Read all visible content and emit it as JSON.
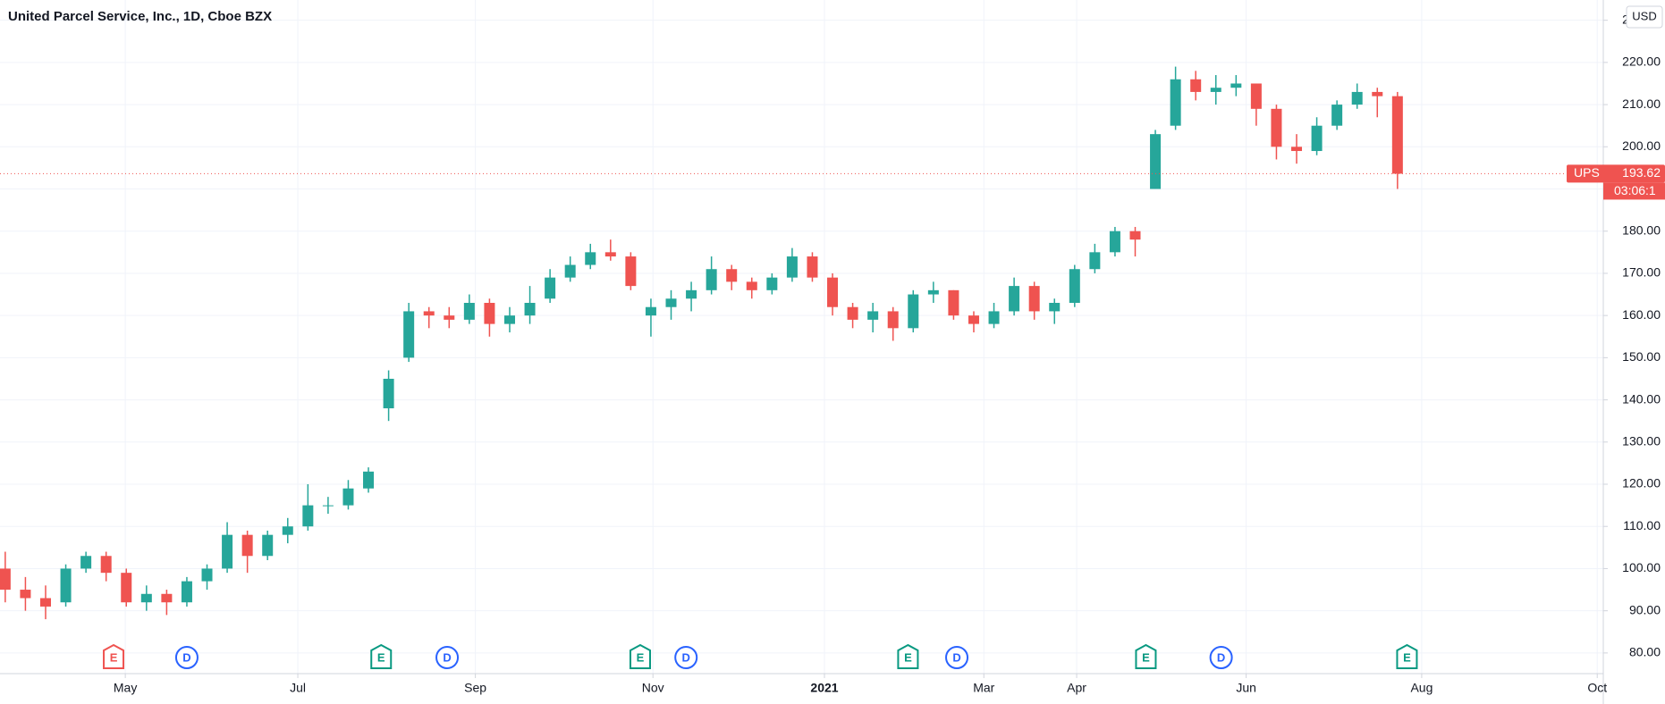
{
  "chart_data": {
    "type": "candlestick",
    "title": "United Parcel Service, Inc., 1D, Cboe BZX",
    "currency": "USD",
    "up_color": "#26a69a",
    "down_color": "#ef5350",
    "grid": true,
    "xlim": [
      -0.26,
      79.2
    ],
    "xticks": [
      {
        "value": 5.95,
        "label": "May"
      },
      {
        "value": 14.5,
        "label": "Jul"
      },
      {
        "value": 23.3,
        "label": "Sep"
      },
      {
        "value": 32.1,
        "label": "Nov"
      },
      {
        "value": 40.6,
        "label": "2021"
      },
      {
        "value": 48.5,
        "label": "Mar"
      },
      {
        "value": 53.1,
        "label": "Apr"
      },
      {
        "value": 61.5,
        "label": "Jun"
      },
      {
        "value": 70.2,
        "label": "Aug"
      },
      {
        "value": 78.9,
        "label": "Oct"
      }
    ],
    "ylim": [
      75.1,
      234.8
    ],
    "yticks": [
      {
        "value": 80,
        "label": "80.00"
      },
      {
        "value": 90,
        "label": "90.00"
      },
      {
        "value": 100,
        "label": "100.00"
      },
      {
        "value": 110,
        "label": "110.00"
      },
      {
        "value": 120,
        "label": "120.00"
      },
      {
        "value": 130,
        "label": "130.00"
      },
      {
        "value": 140,
        "label": "140.00"
      },
      {
        "value": 150,
        "label": "150.00"
      },
      {
        "value": 160,
        "label": "160.00"
      },
      {
        "value": 170,
        "label": "170.00"
      },
      {
        "value": 180,
        "label": "180.00"
      },
      {
        "value": 190,
        "label": "190.00"
      },
      {
        "value": 200,
        "label": "200.00"
      },
      {
        "value": 210,
        "label": "210.00"
      },
      {
        "value": 220,
        "label": "220.00"
      },
      {
        "value": 230,
        "label": "230.00"
      }
    ],
    "open": [
      100,
      95,
      93,
      92,
      100,
      103,
      99,
      92,
      94,
      92,
      97,
      100,
      108,
      103,
      108,
      110,
      115,
      115,
      119,
      138,
      150,
      161,
      160,
      159,
      163,
      158,
      160,
      164,
      169,
      172,
      175,
      174,
      160,
      162,
      164,
      166,
      171,
      168,
      166,
      169,
      174,
      169,
      162,
      159,
      161,
      157,
      165,
      166,
      160,
      158,
      161,
      167,
      161,
      163,
      171,
      175,
      180,
      190,
      205,
      216,
      213,
      214,
      215,
      209,
      200,
      199,
      205,
      210,
      213,
      212
    ],
    "high": [
      104,
      98,
      96,
      101,
      104,
      104,
      100,
      96,
      95,
      98,
      101,
      111,
      109,
      109,
      112,
      120,
      117,
      121,
      124,
      147,
      163,
      162,
      162,
      165,
      164,
      162,
      167,
      171,
      174,
      177,
      178,
      175,
      164,
      166,
      168,
      174,
      172,
      169,
      170,
      176,
      175,
      170,
      163,
      163,
      162,
      166,
      168,
      166,
      161,
      163,
      169,
      168,
      164,
      172,
      177,
      181,
      181,
      204,
      219,
      218,
      217,
      217,
      215,
      210,
      203,
      207,
      211,
      215,
      214,
      213
    ],
    "low": [
      92,
      90,
      88,
      91,
      99,
      97,
      91,
      90,
      89,
      91,
      95,
      99,
      99,
      102,
      106,
      109,
      113,
      114,
      118,
      135,
      149,
      157,
      157,
      158,
      155,
      156,
      158,
      163,
      168,
      171,
      173,
      166,
      155,
      159,
      161,
      165,
      166,
      164,
      165,
      168,
      168,
      160,
      157,
      156,
      154,
      156,
      163,
      159,
      156,
      157,
      160,
      159,
      158,
      162,
      170,
      174,
      174,
      190,
      204,
      211,
      210,
      212,
      205,
      197,
      196,
      198,
      204,
      209,
      207,
      190
    ],
    "close": [
      95,
      93,
      91,
      100,
      103,
      99,
      92,
      94,
      92,
      97,
      100,
      108,
      103,
      108,
      110,
      115,
      115,
      119,
      123,
      145,
      161,
      160,
      159,
      163,
      158,
      160,
      163,
      169,
      172,
      175,
      174,
      167,
      162,
      164,
      166,
      171,
      168,
      166,
      169,
      174,
      169,
      162,
      159,
      161,
      157,
      165,
      166,
      160,
      158,
      161,
      167,
      161,
      163,
      171,
      175,
      180,
      178,
      203,
      216,
      213,
      214,
      215,
      209,
      200,
      199,
      205,
      210,
      213,
      212,
      193.62
    ],
    "events": [
      {
        "label": "E",
        "x": 5.37,
        "color": "#ef5350"
      },
      {
        "label": "D",
        "x": 9.0,
        "color": "#2962ff"
      },
      {
        "label": "E",
        "x": 18.63,
        "color": "#089981"
      },
      {
        "label": "D",
        "x": 21.9,
        "color": "#2962ff"
      },
      {
        "label": "E",
        "x": 31.47,
        "color": "#089981"
      },
      {
        "label": "D",
        "x": 33.74,
        "color": "#2962ff"
      },
      {
        "label": "E",
        "x": 44.74,
        "color": "#089981"
      },
      {
        "label": "D",
        "x": 47.16,
        "color": "#2962ff"
      },
      {
        "label": "E",
        "x": 56.53,
        "color": "#089981"
      },
      {
        "label": "D",
        "x": 60.26,
        "color": "#2962ff"
      },
      {
        "label": "E",
        "x": 69.47,
        "color": "#089981"
      }
    ],
    "last_price": {
      "symbol": "UPS",
      "value": 193.62,
      "value_label": "193.62",
      "countdown": "03:06:1"
    }
  }
}
